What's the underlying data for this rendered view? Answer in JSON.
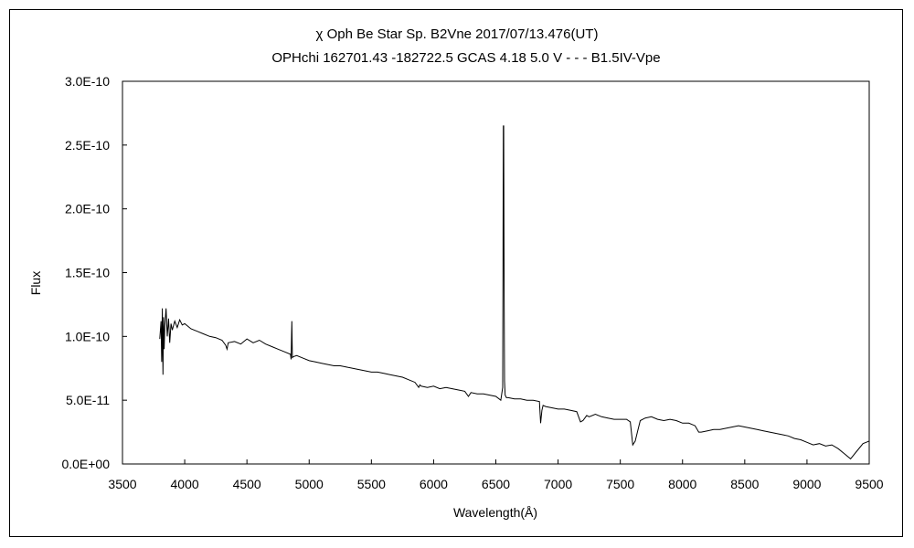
{
  "chart_data": {
    "type": "line",
    "title": "χ Oph    Be Star    Sp. B2Vne    2017/07/13.476(UT)",
    "subtitle": "OPHchi 162701.43 -182722.5 GCAS 4.18 5.0 V - - - B1.5IV-Vpe",
    "xlabel": "Wavelength(Å)",
    "ylabel": "Flux",
    "xlim": [
      3500,
      9500
    ],
    "ylim": [
      0,
      3e-10
    ],
    "x_ticks": [
      "3500",
      "4000",
      "4500",
      "5000",
      "5500",
      "6000",
      "6500",
      "7000",
      "7500",
      "8000",
      "8500",
      "9000",
      "9500"
    ],
    "y_ticks": [
      "0.0E+00",
      "5.0E-11",
      "1.0E-10",
      "1.5E-10",
      "2.0E-10",
      "2.5E-10",
      "3.0E-10"
    ],
    "grid": false,
    "legend": "none",
    "line_color": "#000000",
    "series": [
      {
        "x": [
          3800,
          3810,
          3815,
          3820,
          3825,
          3830,
          3835,
          3840,
          3850,
          3860,
          3870,
          3880,
          3890,
          3900,
          3920,
          3940,
          3960,
          3980,
          4000,
          4050,
          4100,
          4150,
          4200,
          4250,
          4300,
          4330,
          4340,
          4350,
          4400,
          4450,
          4500,
          4550,
          4600,
          4650,
          4700,
          4750,
          4800,
          4850,
          4855,
          4861,
          4865,
          4870,
          4900,
          4950,
          5000,
          5050,
          5100,
          5150,
          5200,
          5250,
          5300,
          5350,
          5400,
          5450,
          5500,
          5550,
          5600,
          5650,
          5700,
          5750,
          5800,
          5850,
          5880,
          5890,
          5900,
          5950,
          6000,
          6050,
          6100,
          6150,
          6200,
          6250,
          6280,
          6300,
          6350,
          6400,
          6450,
          6500,
          6540,
          6555,
          6560,
          6563,
          6566,
          6570,
          6575,
          6580,
          6585,
          6600,
          6650,
          6700,
          6750,
          6800,
          6850,
          6860,
          6870,
          6880,
          6900,
          6950,
          7000,
          7050,
          7100,
          7150,
          7180,
          7200,
          7230,
          7250,
          7300,
          7350,
          7400,
          7450,
          7500,
          7550,
          7580,
          7600,
          7620,
          7640,
          7660,
          7700,
          7750,
          7800,
          7850,
          7900,
          7950,
          8000,
          8050,
          8100,
          8130,
          8150,
          8200,
          8250,
          8300,
          8350,
          8400,
          8450,
          8500,
          8550,
          8600,
          8650,
          8700,
          8750,
          8800,
          8850,
          8900,
          8950,
          9000,
          9050,
          9100,
          9150,
          9200,
          9250,
          9300,
          9350,
          9400,
          9450,
          9500
        ],
        "y": [
          9.8e-11,
          1.12e-10,
          8e-11,
          1.22e-10,
          7e-11,
          1.15e-10,
          9e-11,
          1.08e-10,
          1.22e-10,
          1e-10,
          1.14e-10,
          9.5e-11,
          1.1e-10,
          1.05e-10,
          1.12e-10,
          1.07e-10,
          1.13e-10,
          1.09e-10,
          1.1e-10,
          1.06e-10,
          1.04e-10,
          1.02e-10,
          1e-10,
          9.9e-11,
          9.7e-11,
          9.3e-11,
          9e-11,
          9.5e-11,
          9.6e-11,
          9.4e-11,
          9.8e-11,
          9.5e-11,
          9.7e-11,
          9.4e-11,
          9.2e-11,
          9e-11,
          8.8e-11,
          8.6e-11,
          8.2e-11,
          1.12e-10,
          8.3e-11,
          8.4e-11,
          8.5e-11,
          8.3e-11,
          8.1e-11,
          8e-11,
          7.9e-11,
          7.8e-11,
          7.7e-11,
          7.7e-11,
          7.6e-11,
          7.5e-11,
          7.4e-11,
          7.3e-11,
          7.2e-11,
          7.2e-11,
          7.1e-11,
          7e-11,
          6.9e-11,
          6.8e-11,
          6.6e-11,
          6.4e-11,
          6e-11,
          6.2e-11,
          6.1e-11,
          6e-11,
          6.1e-11,
          5.9e-11,
          6e-11,
          5.9e-11,
          5.8e-11,
          5.7e-11,
          5.3e-11,
          5.6e-11,
          5.5e-11,
          5.5e-11,
          5.4e-11,
          5.3e-11,
          5e-11,
          6e-11,
          2.65e-10,
          2.65e-10,
          1.48e-10,
          6.5e-11,
          5.4e-11,
          5.3e-11,
          5.2e-11,
          5.2e-11,
          5.1e-11,
          5.1e-11,
          5e-11,
          5e-11,
          4.9e-11,
          3.2e-11,
          4.2e-11,
          4.6e-11,
          4.5e-11,
          4.4e-11,
          4.3e-11,
          4.3e-11,
          4.2e-11,
          4.1e-11,
          3.3e-11,
          3.4e-11,
          3.8e-11,
          3.7e-11,
          3.9e-11,
          3.7e-11,
          3.6e-11,
          3.5e-11,
          3.5e-11,
          3.5e-11,
          3.3e-11,
          1.5e-11,
          1.8e-11,
          2.6e-11,
          3.4e-11,
          3.6e-11,
          3.7e-11,
          3.5e-11,
          3.4e-11,
          3.5e-11,
          3.4e-11,
          3.2e-11,
          3.2e-11,
          3e-11,
          2.5e-11,
          2.5e-11,
          2.6e-11,
          2.7e-11,
          2.7e-11,
          2.8e-11,
          2.9e-11,
          3e-11,
          2.9e-11,
          2.8e-11,
          2.7e-11,
          2.6e-11,
          2.5e-11,
          2.4e-11,
          2.3e-11,
          2.2e-11,
          2e-11,
          1.9e-11,
          1.7e-11,
          1.5e-11,
          1.6e-11,
          1.4e-11,
          1.5e-11,
          1.2e-11,
          8e-12,
          4e-12,
          1e-11,
          1.6e-11,
          1.8e-11
        ]
      }
    ]
  }
}
